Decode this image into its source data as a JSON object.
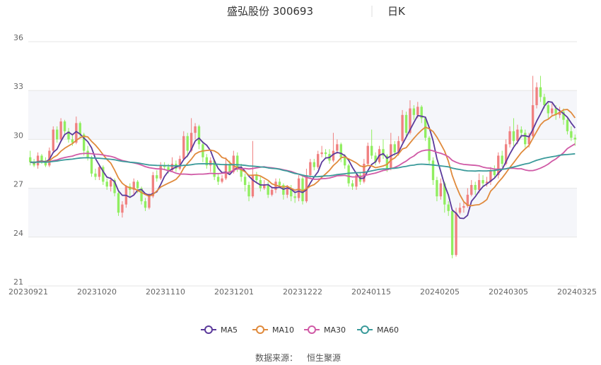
{
  "chart_data": {
    "type": "candlestick",
    "title": "盛弘股份 300693",
    "period": "日K",
    "source_label": "数据来源：",
    "source_name": "恒生聚源",
    "ylim": [
      21,
      36
    ],
    "yticks": [
      21,
      24,
      27,
      30,
      33,
      36
    ],
    "x_tick_labels": [
      "20230921",
      "20231020",
      "20231110",
      "20231201",
      "20231222",
      "20240115",
      "20240205",
      "20240305",
      "20240325"
    ],
    "bands": [
      [
        24,
        27
      ],
      [
        30,
        33
      ]
    ],
    "colors": {
      "up": "#f08080",
      "down": "#90ee60",
      "grid": "#e6e6e6",
      "band": "#f5f6fa"
    },
    "legend": [
      {
        "name": "MA5",
        "color": "#5b3a9b"
      },
      {
        "name": "MA10",
        "color": "#e08a3c"
      },
      {
        "name": "MA30",
        "color": "#d05aa6"
      },
      {
        "name": "MA60",
        "color": "#3a9a9a"
      }
    ],
    "candles": [
      [
        28.9,
        28.6,
        29.3,
        28.4
      ],
      [
        28.6,
        28.4,
        28.8,
        28.3
      ],
      [
        28.4,
        29.0,
        29.2,
        28.2
      ],
      [
        29.0,
        28.7,
        29.1,
        28.5
      ],
      [
        28.7,
        28.4,
        28.9,
        28.3
      ],
      [
        28.4,
        29.3,
        29.5,
        28.3
      ],
      [
        29.3,
        30.6,
        30.8,
        29.2
      ],
      [
        30.6,
        30.0,
        30.8,
        29.8
      ],
      [
        30.0,
        31.1,
        31.3,
        29.9
      ],
      [
        31.1,
        30.5,
        31.2,
        30.3
      ],
      [
        30.5,
        30.0,
        30.7,
        29.8
      ],
      [
        30.0,
        29.8,
        30.3,
        29.6
      ],
      [
        29.8,
        31.0,
        31.4,
        29.7
      ],
      [
        31.0,
        30.3,
        31.1,
        30.1
      ],
      [
        30.3,
        29.3,
        30.4,
        29.0
      ],
      [
        29.3,
        28.9,
        29.6,
        28.7
      ],
      [
        28.9,
        27.9,
        29.0,
        27.7
      ],
      [
        27.9,
        27.7,
        28.2,
        27.5
      ],
      [
        27.7,
        28.3,
        28.5,
        27.5
      ],
      [
        28.3,
        27.4,
        28.4,
        27.2
      ],
      [
        27.4,
        27.1,
        27.6,
        26.9
      ],
      [
        27.1,
        27.5,
        27.7,
        26.8
      ],
      [
        27.5,
        26.7,
        27.6,
        26.5
      ],
      [
        26.7,
        25.5,
        26.8,
        25.3
      ],
      [
        25.5,
        26.0,
        26.2,
        25.2
      ],
      [
        26.0,
        27.1,
        27.2,
        25.8
      ],
      [
        27.1,
        26.9,
        27.3,
        26.4
      ],
      [
        26.9,
        27.4,
        27.6,
        26.6
      ],
      [
        27.4,
        27.0,
        27.5,
        26.7
      ],
      [
        27.0,
        26.2,
        27.1,
        26.0
      ],
      [
        26.2,
        25.8,
        26.4,
        25.6
      ],
      [
        25.8,
        26.5,
        26.7,
        25.7
      ],
      [
        26.5,
        27.8,
        28.0,
        26.4
      ],
      [
        27.8,
        27.6,
        28.1,
        27.4
      ],
      [
        27.6,
        28.4,
        28.6,
        27.5
      ],
      [
        28.4,
        28.3,
        28.6,
        28.1
      ],
      [
        28.3,
        28.1,
        28.5,
        27.9
      ],
      [
        28.1,
        28.5,
        28.9,
        28.0
      ],
      [
        28.5,
        28.2,
        28.7,
        28.0
      ],
      [
        28.2,
        28.8,
        29.0,
        28.1
      ],
      [
        28.8,
        30.2,
        30.5,
        28.7
      ],
      [
        30.2,
        29.3,
        30.4,
        28.9
      ],
      [
        29.3,
        30.4,
        31.3,
        29.2
      ],
      [
        30.4,
        30.8,
        31.0,
        30.0
      ],
      [
        30.8,
        29.7,
        30.9,
        29.4
      ],
      [
        29.7,
        28.9,
        29.9,
        28.6
      ],
      [
        28.9,
        28.4,
        29.1,
        28.2
      ],
      [
        28.4,
        28.7,
        28.9,
        28.0
      ],
      [
        28.7,
        27.7,
        28.8,
        27.5
      ],
      [
        27.7,
        27.4,
        27.9,
        27.2
      ],
      [
        27.4,
        27.6,
        27.8,
        27.3
      ],
      [
        27.6,
        28.5,
        28.9,
        27.5
      ],
      [
        28.5,
        28.0,
        28.7,
        27.8
      ],
      [
        28.0,
        29.0,
        29.3,
        27.9
      ],
      [
        29.0,
        28.3,
        29.2,
        28.0
      ],
      [
        28.3,
        27.7,
        28.5,
        27.4
      ],
      [
        27.7,
        27.2,
        27.9,
        26.8
      ],
      [
        27.2,
        26.5,
        27.4,
        26.2
      ],
      [
        26.5,
        27.8,
        29.9,
        26.4
      ],
      [
        27.8,
        27.5,
        28.0,
        27.3
      ],
      [
        27.5,
        27.0,
        27.7,
        26.8
      ],
      [
        27.0,
        27.2,
        27.5,
        26.9
      ],
      [
        27.2,
        26.6,
        27.4,
        26.4
      ],
      [
        26.6,
        26.9,
        27.1,
        26.5
      ],
      [
        26.9,
        27.4,
        27.6,
        26.7
      ],
      [
        27.4,
        27.2,
        27.6,
        27.0
      ],
      [
        27.2,
        26.6,
        27.3,
        26.3
      ],
      [
        26.6,
        27.0,
        27.2,
        26.4
      ],
      [
        27.0,
        26.5,
        27.2,
        26.2
      ],
      [
        26.5,
        26.4,
        26.8,
        26.1
      ],
      [
        26.4,
        27.6,
        27.8,
        26.2
      ],
      [
        27.6,
        26.2,
        27.8,
        26.0
      ],
      [
        26.2,
        27.8,
        28.2,
        26.1
      ],
      [
        27.8,
        28.6,
        28.8,
        27.6
      ],
      [
        28.6,
        28.3,
        28.8,
        28.1
      ],
      [
        28.3,
        29.1,
        29.3,
        28.2
      ],
      [
        29.1,
        29.2,
        29.6,
        28.9
      ],
      [
        29.2,
        29.1,
        29.4,
        28.8
      ],
      [
        29.1,
        28.7,
        29.4,
        28.5
      ],
      [
        28.7,
        29.3,
        30.4,
        28.6
      ],
      [
        29.3,
        29.7,
        30.0,
        29.1
      ],
      [
        29.7,
        28.9,
        29.8,
        28.6
      ],
      [
        28.9,
        28.4,
        29.1,
        28.2
      ],
      [
        28.4,
        27.3,
        28.5,
        27.1
      ],
      [
        27.3,
        27.1,
        27.5,
        26.9
      ],
      [
        27.1,
        27.8,
        28.0,
        26.9
      ],
      [
        27.8,
        27.4,
        28.0,
        27.2
      ],
      [
        27.4,
        28.5,
        28.8,
        27.3
      ],
      [
        28.5,
        29.6,
        29.8,
        28.4
      ],
      [
        29.6,
        29.0,
        30.6,
        28.8
      ],
      [
        29.0,
        28.6,
        29.2,
        28.4
      ],
      [
        28.6,
        29.4,
        29.6,
        28.5
      ],
      [
        29.4,
        29.0,
        30.0,
        28.8
      ],
      [
        29.0,
        28.2,
        29.1,
        28.0
      ],
      [
        28.2,
        29.7,
        30.4,
        28.1
      ],
      [
        29.7,
        29.2,
        29.9,
        29.0
      ],
      [
        29.2,
        29.9,
        30.2,
        29.0
      ],
      [
        29.9,
        31.5,
        31.8,
        29.8
      ],
      [
        31.5,
        30.4,
        31.7,
        30.1
      ],
      [
        30.4,
        31.9,
        32.4,
        30.3
      ],
      [
        31.9,
        31.5,
        32.1,
        31.2
      ],
      [
        31.5,
        32.0,
        32.3,
        31.3
      ],
      [
        32.0,
        31.3,
        32.1,
        31.0
      ],
      [
        31.3,
        30.1,
        31.4,
        29.9
      ],
      [
        30.1,
        28.7,
        30.2,
        28.5
      ],
      [
        28.7,
        27.5,
        28.9,
        27.2
      ],
      [
        27.5,
        26.5,
        27.7,
        26.2
      ],
      [
        26.5,
        27.3,
        27.6,
        26.3
      ],
      [
        27.3,
        26.0,
        27.4,
        25.5
      ],
      [
        26.0,
        25.6,
        26.2,
        25.3
      ],
      [
        25.6,
        22.9,
        25.7,
        22.7
      ],
      [
        22.9,
        25.5,
        25.8,
        22.8
      ],
      [
        25.5,
        25.8,
        26.1,
        25.4
      ],
      [
        25.8,
        25.9,
        26.2,
        25.5
      ],
      [
        25.9,
        26.6,
        27.0,
        25.8
      ],
      [
        26.6,
        27.2,
        27.5,
        26.5
      ],
      [
        27.2,
        26.9,
        27.4,
        26.6
      ],
      [
        26.9,
        27.5,
        27.9,
        26.7
      ],
      [
        27.5,
        27.3,
        27.8,
        27.1
      ],
      [
        27.3,
        27.4,
        27.7,
        27.1
      ],
      [
        27.4,
        28.1,
        28.3,
        27.2
      ],
      [
        28.1,
        27.8,
        28.4,
        27.6
      ],
      [
        27.8,
        29.0,
        29.2,
        27.6
      ],
      [
        29.0,
        28.5,
        29.3,
        28.3
      ],
      [
        28.5,
        29.7,
        30.0,
        28.4
      ],
      [
        29.7,
        30.5,
        30.8,
        29.5
      ],
      [
        30.5,
        29.9,
        31.3,
        29.6
      ],
      [
        29.9,
        30.6,
        30.9,
        29.7
      ],
      [
        30.6,
        30.4,
        30.8,
        30.1
      ],
      [
        30.4,
        29.7,
        30.6,
        29.5
      ],
      [
        29.7,
        30.2,
        30.4,
        29.5
      ],
      [
        30.2,
        32.1,
        33.9,
        30.0
      ],
      [
        32.1,
        33.2,
        33.5,
        31.9
      ],
      [
        33.2,
        32.6,
        33.9,
        32.3
      ],
      [
        32.6,
        32.1,
        32.8,
        31.9
      ],
      [
        32.1,
        31.6,
        32.3,
        31.3
      ],
      [
        31.6,
        31.9,
        32.2,
        31.4
      ],
      [
        31.9,
        31.5,
        32.1,
        31.2
      ],
      [
        31.5,
        31.7,
        32.0,
        31.3
      ],
      [
        31.7,
        31.2,
        31.9,
        30.9
      ],
      [
        31.2,
        30.5,
        31.4,
        30.3
      ],
      [
        30.5,
        30.1,
        30.8,
        29.9
      ],
      [
        30.1,
        30.0,
        30.3,
        29.6
      ]
    ]
  }
}
